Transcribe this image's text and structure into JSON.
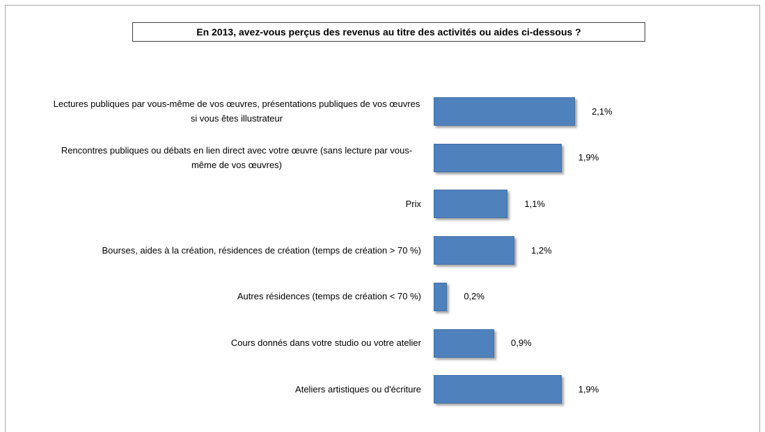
{
  "chart_data": {
    "type": "bar",
    "orientation": "horizontal",
    "title": "En 2013, avez-vous perçus des revenus au titre des activités ou aides ci-dessous ?",
    "categories": [
      "Lectures publiques par vous-même de vos œuvres, présentations publiques de vos œuvres si vous êtes illustrateur",
      "Rencontres publiques ou débats en lien direct avec votre œuvre (sans lecture par vous-même de vos œuvres)",
      "Prix",
      "Bourses, aides à la création, résidences de création (temps de création > 70 %)",
      "Autres résidences (temps de création < 70 %)",
      "Cours donnés dans votre studio ou votre atelier",
      "Ateliers artistiques ou d'écriture"
    ],
    "values": [
      2.1,
      1.9,
      1.1,
      1.2,
      0.2,
      0.9,
      1.9
    ],
    "value_labels": [
      "2,1%",
      "1,9%",
      "1,1%",
      "1,2%",
      "0,2%",
      "0,9%",
      "1,9%"
    ],
    "color": "#4f81bd"
  }
}
